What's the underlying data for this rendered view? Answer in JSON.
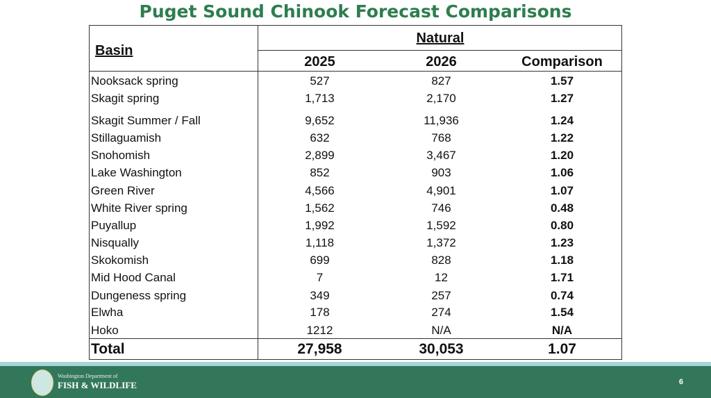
{
  "title": "Puget Sound Chinook Forecast Comparisons",
  "table": {
    "basin_header": "Basin",
    "group_header": "Natural",
    "columns": [
      "2025",
      "2026",
      "Comparison"
    ],
    "rows": [
      {
        "basin": "Nooksack spring",
        "y2025": "527",
        "y2026": "827",
        "comparison": "1.57"
      },
      {
        "basin": "Skagit spring",
        "y2025": "1,713",
        "y2026": "2,170",
        "comparison": "1.27"
      },
      {
        "basin": "Skagit Summer / Fall",
        "y2025": "9,652",
        "y2026": "11,936",
        "comparison": "1.24"
      },
      {
        "basin": "Stillaguamish",
        "y2025": "632",
        "y2026": "768",
        "comparison": "1.22"
      },
      {
        "basin": "Snohomish",
        "y2025": "2,899",
        "y2026": "3,467",
        "comparison": "1.20"
      },
      {
        "basin": "Lake Washington",
        "y2025": "852",
        "y2026": "903",
        "comparison": "1.06"
      },
      {
        "basin": "Green River",
        "y2025": "4,566",
        "y2026": "4,901",
        "comparison": "1.07"
      },
      {
        "basin": "White River spring",
        "y2025": "1,562",
        "y2026": "746",
        "comparison": "0.48"
      },
      {
        "basin": "Puyallup",
        "y2025": "1,992",
        "y2026": "1,592",
        "comparison": "0.80"
      },
      {
        "basin": "Nisqually",
        "y2025": "1,118",
        "y2026": "1,372",
        "comparison": "1.23"
      },
      {
        "basin": "Skokomish",
        "y2025": "699",
        "y2026": "828",
        "comparison": "1.18"
      },
      {
        "basin": "Mid Hood Canal",
        "y2025": "7",
        "y2026": "12",
        "comparison": "1.71"
      },
      {
        "basin": "Dungeness spring",
        "y2025": "349",
        "y2026": "257",
        "comparison": "0.74"
      },
      {
        "basin": "Elwha",
        "y2025": "178",
        "y2026": "274",
        "comparison": "1.54"
      },
      {
        "basin": "Hoko",
        "y2025": "1212",
        "y2026": "N/A",
        "comparison": "N/A"
      }
    ],
    "total": {
      "basin": "Total",
      "y2025": "27,958",
      "y2026": "30,053",
      "comparison": "1.07"
    }
  },
  "footer": {
    "org_line1": "Washington Department of",
    "org_line2": "FISH & WILDLIFE",
    "page_number": "6",
    "colors": {
      "title": "#2E7D4F",
      "footer": "#33775A",
      "strip": "#A7D3DB"
    }
  }
}
